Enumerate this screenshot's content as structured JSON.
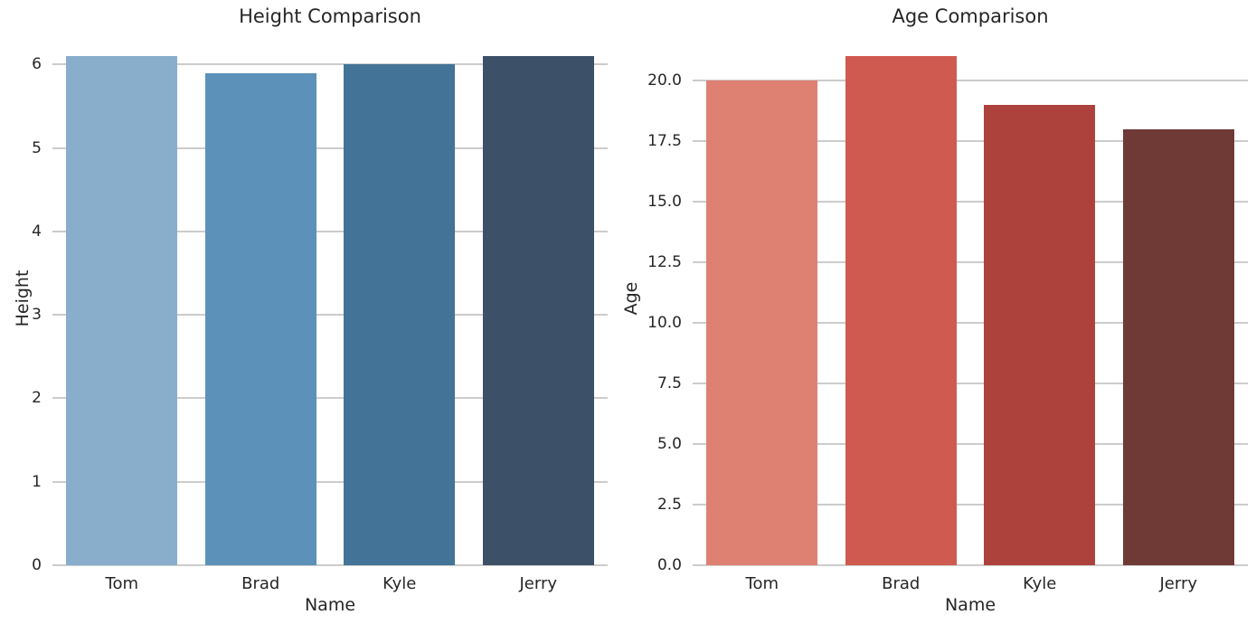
{
  "figure": {
    "background_color": "#ffffff",
    "text_color": "#262626",
    "grid_color": "#cccccc"
  },
  "chart_data": [
    {
      "type": "bar",
      "title": "Height Comparison",
      "xlabel": "Name",
      "ylabel": "Height",
      "categories": [
        "Tom",
        "Brad",
        "Kyle",
        "Jerry"
      ],
      "values": [
        6.1,
        5.9,
        6.0,
        6.1
      ],
      "bar_colors": [
        "#88aecb",
        "#5c92b9",
        "#437397",
        "#3c5167"
      ],
      "palette_name": "blues-dark",
      "yticks": [
        0,
        1,
        2,
        3,
        4,
        5,
        6
      ],
      "ytick_labels": [
        "0",
        "1",
        "2",
        "3",
        "4",
        "5",
        "6"
      ],
      "ylim": [
        0,
        6.405
      ],
      "grid": true,
      "legend_position": "none"
    },
    {
      "type": "bar",
      "title": "Age Comparison",
      "xlabel": "Name",
      "ylabel": "Age",
      "categories": [
        "Tom",
        "Brad",
        "Kyle",
        "Jerry"
      ],
      "values": [
        20,
        21,
        19,
        18
      ],
      "bar_colors": [
        "#de8173",
        "#cf5a4f",
        "#ad413c",
        "#6f3936"
      ],
      "palette_name": "reds-dark",
      "yticks": [
        0,
        2.5,
        5,
        7.5,
        10,
        12.5,
        15,
        17.5,
        20
      ],
      "ytick_labels": [
        "0.0",
        "2.5",
        "5.0",
        "7.5",
        "10.0",
        "12.5",
        "15.0",
        "17.5",
        "20.0"
      ],
      "ylim": [
        0,
        22.05
      ],
      "grid": true,
      "legend_position": "none"
    }
  ]
}
